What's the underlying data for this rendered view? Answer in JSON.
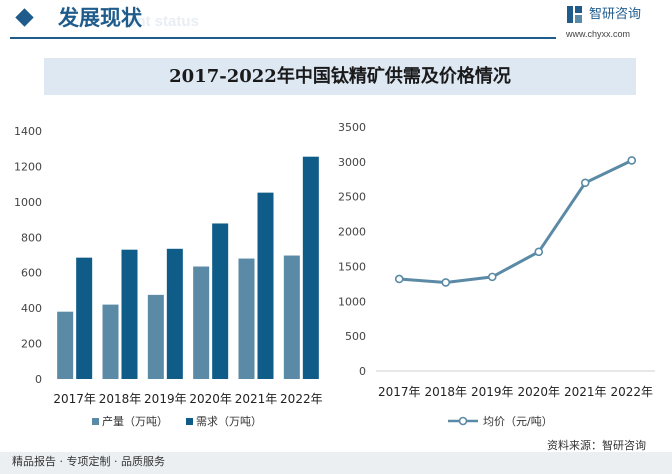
{
  "header": {
    "section_title": "发展现状",
    "section_subtitle_en": "ent status",
    "brand_name": "智研咨询",
    "brand_url": "www.chyxx.com"
  },
  "chart_title": "2017-2022年中国钛精矿供需及价格情况",
  "footer": {
    "services": "精品报告 · 专项定制 · 品质服务",
    "source": "资料来源：智研咨询"
  },
  "colors": {
    "brand": "#1f5c8c",
    "output_bar": "#5b8aa6",
    "demand_bar": "#0e5c87",
    "price_line": "#5b8aa6"
  },
  "chart_data": [
    {
      "type": "bar",
      "title": "",
      "categories": [
        "2017年",
        "2018年",
        "2019年",
        "2020年",
        "2021年",
        "2022年"
      ],
      "series": [
        {
          "name": "产量（万吨）",
          "values": [
            380,
            420,
            475,
            635,
            680,
            697
          ]
        },
        {
          "name": "需求（万吨）",
          "values": [
            685,
            730,
            735,
            878,
            1052,
            1255
          ]
        }
      ],
      "ylim": [
        0,
        1400
      ],
      "yticks": [
        0,
        200,
        400,
        600,
        800,
        1000,
        1200,
        1400
      ],
      "grid": false,
      "legend": "bottom"
    },
    {
      "type": "line",
      "title": "",
      "categories": [
        "2017年",
        "2018年",
        "2019年",
        "2020年",
        "2021年",
        "2022年"
      ],
      "series": [
        {
          "name": "均价（元/吨）",
          "values": [
            1320,
            1270,
            1350,
            1710,
            2700,
            3020
          ]
        }
      ],
      "ylim": [
        0,
        3500
      ],
      "yticks": [
        0,
        500,
        1000,
        1500,
        2000,
        2500,
        3000,
        3500
      ],
      "grid": false,
      "legend": "bottom"
    }
  ]
}
